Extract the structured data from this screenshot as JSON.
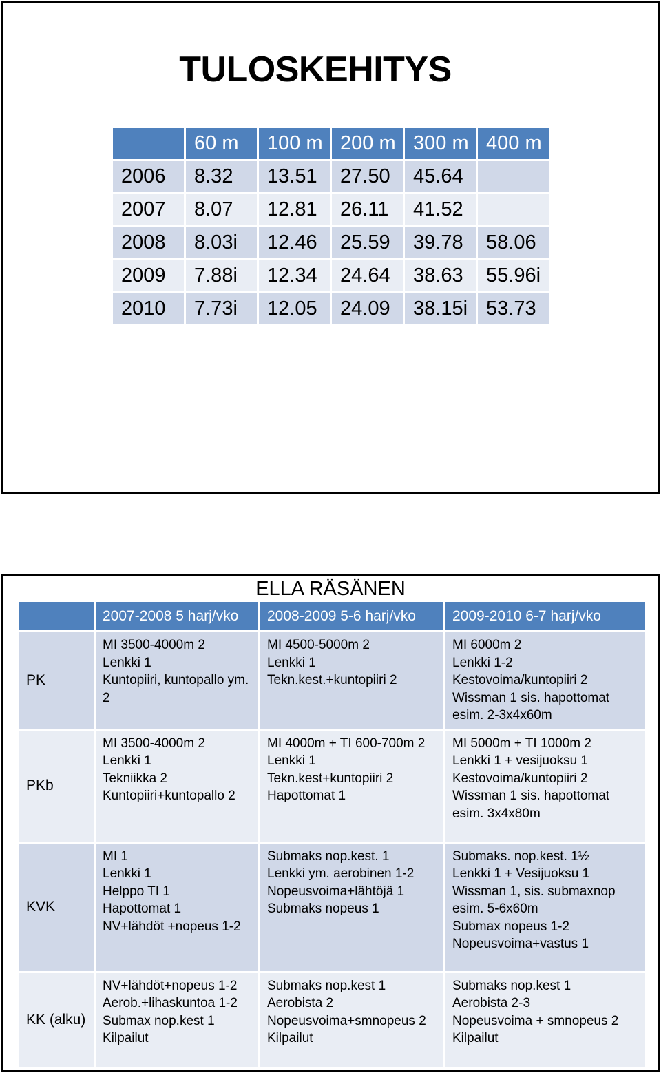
{
  "slide1": {
    "title": "TULOSKEHITYS",
    "headers": [
      "60 m",
      "100 m",
      "200 m",
      "300 m",
      "400 m"
    ],
    "rows": [
      [
        "2006",
        "8.32",
        "13.51",
        "27.50",
        "45.64",
        ""
      ],
      [
        "2007",
        "8.07",
        "12.81",
        "26.11",
        "41.52",
        ""
      ],
      [
        "2008",
        "8.03i",
        "12.46",
        "25.59",
        "39.78",
        "58.06"
      ],
      [
        "2009",
        "7.88i",
        "12.34",
        "24.64",
        "38.63",
        "55.96i"
      ],
      [
        "2010",
        "7.73i",
        "12.05",
        "24.09",
        "38.15i",
        "53.73"
      ]
    ]
  },
  "slide2": {
    "title": "ELLA RÄSÄNEN",
    "headers": [
      "2007-2008 5 harj/vko",
      "2008-2009 5-6 harj/vko",
      "2009-2010 6-7 harj/vko"
    ],
    "rows": [
      {
        "label": "PK",
        "cells": [
          [
            "MI 3500-4000m 2",
            "Lenkki  1",
            "Kuntopiiri, kuntopallo ym. 2"
          ],
          [
            "MI 4500-5000m 2",
            "Lenkki  1",
            "Tekn.kest.+kuntopiiri 2"
          ],
          [
            "MI 6000m 2",
            "Lenkki  1-2",
            "Kestovoima/kuntopiiri 2",
            "Wissman 1 sis. hapottomat esim. 2-3x4x60m"
          ]
        ]
      },
      {
        "label": "PKb",
        "cells": [
          [
            "MI 3500-4000m 2",
            "Lenkki 1",
            "Tekniikka 2",
            "Kuntopiiri+kuntopallo 2"
          ],
          [
            "MI 4000m + TI 600-700m 2",
            "Lenkki  1",
            "Tekn.kest+kuntopiiri 2",
            "Hapottomat 1"
          ],
          [
            "MI 5000m + TI 1000m 2",
            "Lenkki  1 + vesijuoksu 1",
            "Kestovoima/kuntopiiri 2",
            "Wissman 1 sis. hapottomat esim. 3x4x80m"
          ]
        ]
      },
      {
        "label": "KVK",
        "cells": [
          [
            "MI  1",
            "Lenkki 1",
            "Helppo TI 1",
            "Hapottomat 1",
            "NV+lähdöt +nopeus 1-2"
          ],
          [
            "Submaks nop.kest. 1",
            "Lenkki ym. aerobinen 1-2",
            "Nopeusvoima+lähtöjä 1",
            "Submaks nopeus 1"
          ],
          [
            "Submaks. nop.kest. 1½",
            "Lenkki 1 + Vesijuoksu 1",
            "Wissman 1, sis. submaxnop esim. 5-6x60m",
            "Submax nopeus 1-2",
            "Nopeusvoima+vastus  1"
          ]
        ]
      },
      {
        "label": "KK (alku)",
        "cells": [
          [
            "NV+lähdöt+nopeus 1-2",
            "Aerob.+lihaskuntoa 1-2",
            "Submax nop.kest 1",
            "Kilpailut"
          ],
          [
            "Submaks nop.kest  1",
            "Aerobista 2",
            "Nopeusvoima+smnopeus 2",
            "Kilpailut"
          ],
          [
            "Submaks nop.kest  1",
            "Aerobista 2-3",
            "Nopeusvoima + smnopeus 2",
            "Kilpailut"
          ]
        ]
      }
    ]
  }
}
